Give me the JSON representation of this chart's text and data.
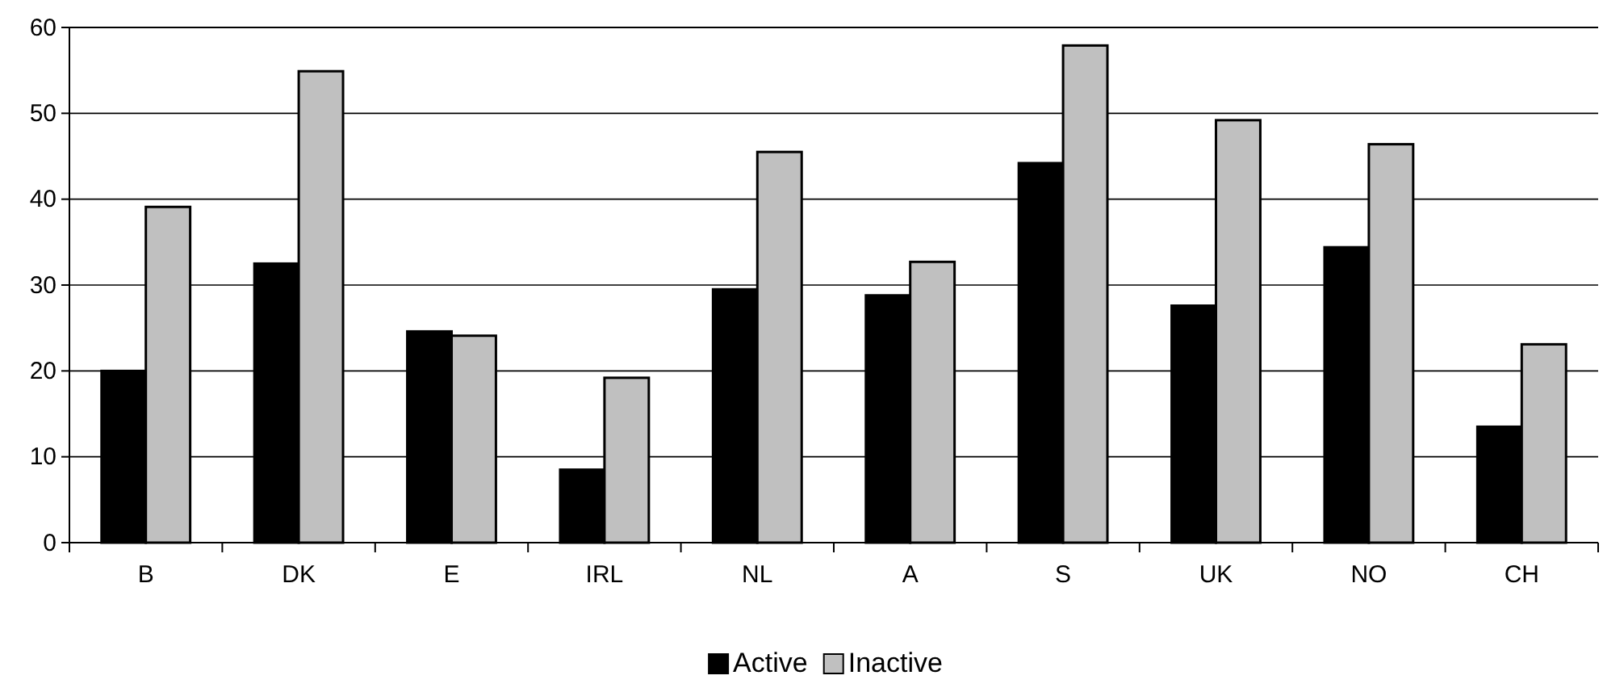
{
  "chart_data": {
    "type": "bar",
    "categories": [
      "B",
      "DK",
      "E",
      "IRL",
      "NL",
      "A",
      "S",
      "UK",
      "NO",
      "CH"
    ],
    "series": [
      {
        "name": "Active",
        "color": "#000000",
        "values": [
          20,
          32.5,
          24.6,
          8.5,
          29.5,
          28.8,
          44.2,
          27.6,
          34.4,
          13.5
        ]
      },
      {
        "name": "Inactive",
        "color": "#c0c0c0",
        "values": [
          39.1,
          54.9,
          24.1,
          19.2,
          45.5,
          32.7,
          57.9,
          49.2,
          46.4,
          23.1
        ]
      }
    ],
    "ylim": [
      0,
      60
    ],
    "yticks": [
      0,
      10,
      20,
      30,
      40,
      50,
      60
    ],
    "grid": "y",
    "legend": "bottom"
  }
}
